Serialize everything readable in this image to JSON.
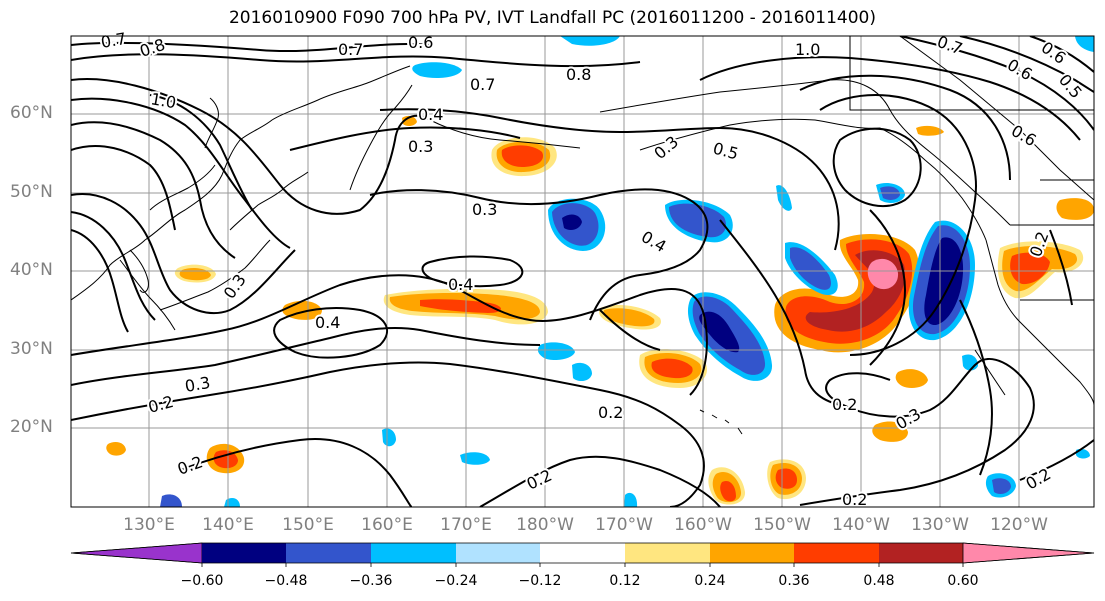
{
  "title": "2016010900 F090 700 hPa PV, IVT Landfall PC (2016011200 - 2016011400)",
  "lat_labels": [
    "60°N",
    "50°N",
    "40°N",
    "30°N",
    "20°N"
  ],
  "lon_labels": [
    "130°E",
    "140°E",
    "150°E",
    "160°E",
    "170°E",
    "180°W",
    "170°W",
    "160°W",
    "150°W",
    "140°W",
    "130°W",
    "120°W"
  ],
  "colorbar": {
    "labels": [
      "−0.60",
      "−0.48",
      "−0.36",
      "−0.24",
      "−0.12",
      "0.12",
      "0.24",
      "0.36",
      "0.48",
      "0.60"
    ],
    "colors": [
      "#9933cc",
      "#000080",
      "#3355cc",
      "#00bfff",
      "#b0e2ff",
      "#ffffff",
      "#ffe680",
      "#ffa500",
      "#ff3d00",
      "#b22222",
      "#ff88aa"
    ]
  },
  "contour_labels": [
    "0.7",
    "0.8",
    "0.7",
    "0.6",
    "1.0",
    "0.7",
    "0.8",
    "1.0",
    "0.4",
    "0.3",
    "0.7",
    "0.6",
    "0.6",
    "0.5",
    "0.5",
    "0.6",
    "0.3",
    "0.3",
    "0.4",
    "0.4",
    "0.3",
    "0.4",
    "0.3",
    "0.2",
    "0.2",
    "0.2",
    "0.2",
    "0.2",
    "0.2",
    "0.2",
    "0.2",
    "0.3"
  ],
  "colors": {
    "grid": "#999999",
    "contour": "#000000",
    "coast": "#000000"
  }
}
